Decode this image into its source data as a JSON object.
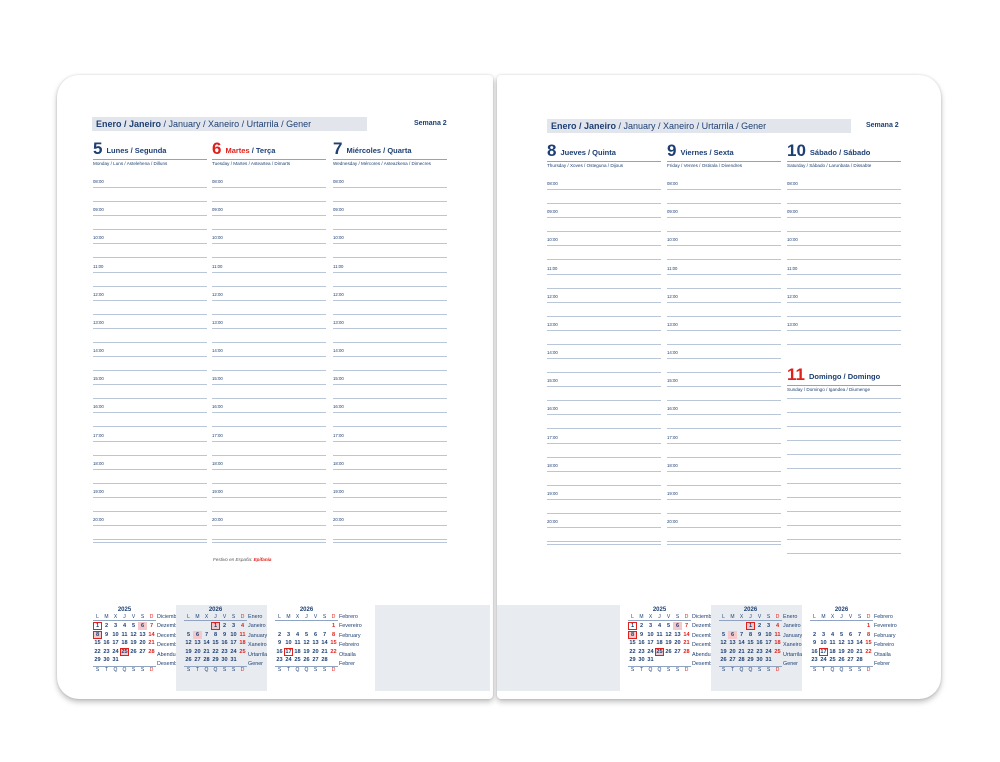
{
  "colors": {
    "primary": "#1d3f73",
    "accent_red": "#e0201b",
    "band": "#e2e6ec"
  },
  "left": {
    "month_header": {
      "bold": "Enero / Janeiro",
      "rest": " / January / Xaneiro / Urtarrila / Gener"
    },
    "week": "Semana 2",
    "days": [
      {
        "num": "5",
        "name": "Lunes / Segunda",
        "red_name": "",
        "sub": "Monday / Luns / Astelehena / Dilluns",
        "red": false
      },
      {
        "num": "6",
        "name": " / Terça",
        "red_name": "Martes",
        "sub": "Tuesday / Martes / Asteartea / Dimarts",
        "red": true
      },
      {
        "num": "7",
        "name": "Miércoles / Quarta",
        "red_name": "",
        "sub": "Wednesday / Mércores / Asteazkena / Dimecres",
        "red": false
      }
    ],
    "holiday_note": {
      "label": "Festivo en España:",
      "holiday": "Epifanía"
    }
  },
  "right": {
    "month_header": {
      "bold": "Enero / Janeiro",
      "rest": " / January / Xaneiro / Urtarrila / Gener"
    },
    "week": "Semana 2",
    "days": [
      {
        "num": "8",
        "name": "Jueves / Quinta",
        "sub": "Thursday / Xoves / Osteguna / Dijous"
      },
      {
        "num": "9",
        "name": "Viernes / Sexta",
        "sub": "Friday / Venres / Ostirala / Divendres"
      },
      {
        "num": "10",
        "name": "Sábado / Sábado",
        "sub": "Saturday / Sábado / Larunbata / Dissabte"
      }
    ],
    "sunday": {
      "num": "11",
      "name": "Domingo / Domingo",
      "sub": "Sunday / Domingo / Igandea / Diumenge"
    }
  },
  "times": [
    "08:00",
    "09:00",
    "10:00",
    "11:00",
    "12:00",
    "13:00",
    "14:00",
    "15:00",
    "16:00",
    "17:00",
    "18:00",
    "19:00",
    "20:00"
  ],
  "saturday_times": [
    "08:00",
    "09:00",
    "10:00",
    "11:00",
    "12:00",
    "13:00"
  ],
  "mini_calendars": {
    "weekday_letters": [
      "L",
      "M",
      "X",
      "J",
      "V",
      "S",
      "D"
    ],
    "footer_letters": [
      "S",
      "T",
      "Q",
      "Q",
      "S",
      "S",
      "D"
    ],
    "months": [
      {
        "year": "2025",
        "offset": 0,
        "days": 31,
        "names": [
          "Diciembre",
          "Dezembro",
          "December",
          "Decembro",
          "Abendua",
          "Desembre"
        ],
        "filled": [
          6,
          8,
          25
        ],
        "boxed": [
          1,
          8,
          25
        ],
        "highlighted": false
      },
      {
        "year": "2026",
        "offset": 3,
        "days": 31,
        "names": [
          "Enero",
          "Janeiro",
          "January",
          "Xaneiro",
          "Urtarrila",
          "Gener"
        ],
        "filled": [
          1,
          6
        ],
        "boxed": [
          1
        ],
        "highlighted": true
      },
      {
        "year": "2026",
        "offset": 6,
        "days": 28,
        "names": [
          "Febrero",
          "Fevereiro",
          "February",
          "Febreiro",
          "Otsaila",
          "Febrer"
        ],
        "filled": [],
        "boxed": [
          17
        ],
        "highlighted": false
      }
    ]
  }
}
